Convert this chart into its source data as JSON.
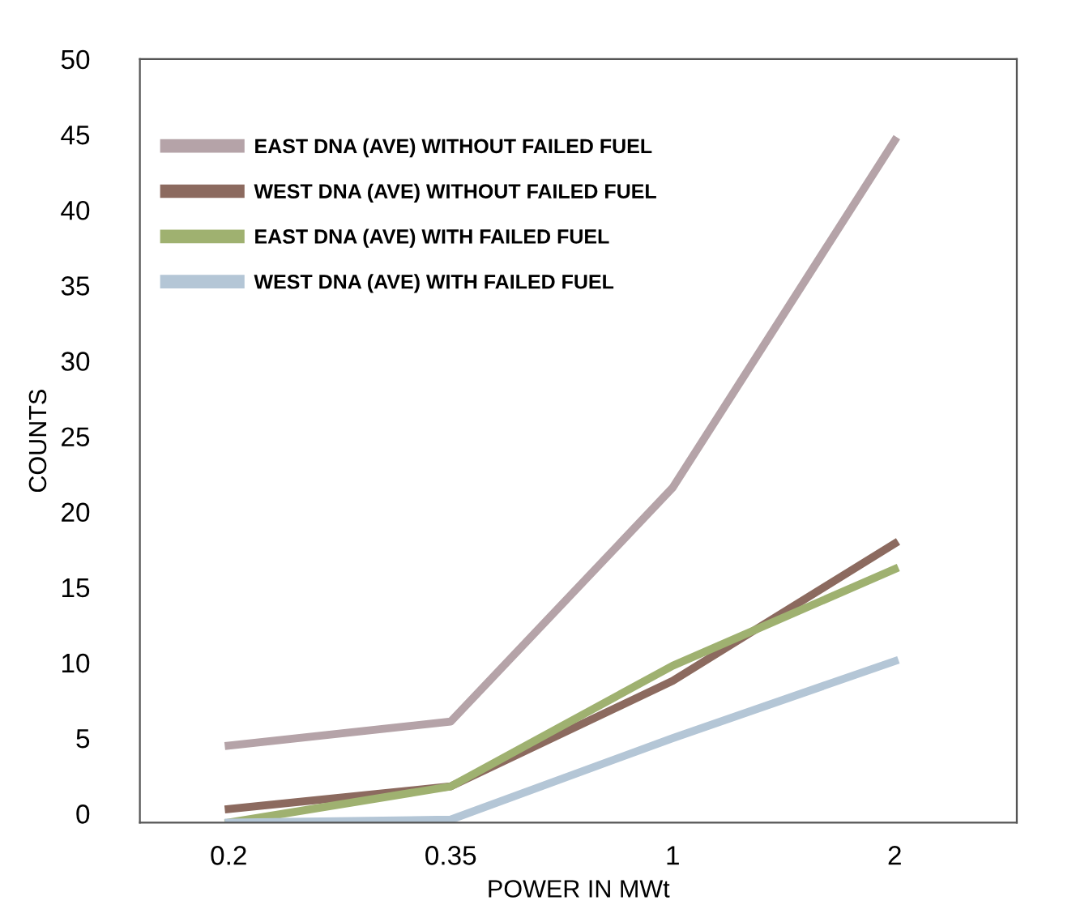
{
  "chart_data": {
    "type": "line",
    "xlabel": "POWER IN MWt",
    "ylabel": "COUNTS",
    "categories": [
      "0.2",
      "0.35",
      "1",
      "2"
    ],
    "series": [
      {
        "name": "EAST DNA (AVE) WITHOUT FAILED FUEL",
        "color": "#b5a3a8",
        "values": [
          4.5,
          6.1,
          21.6,
          44.6
        ]
      },
      {
        "name": "WEST DNA (AVE) WITHOUT FAILED FUEL",
        "color": "#8c6a5f",
        "values": [
          0.3,
          1.8,
          8.8,
          17.9
        ]
      },
      {
        "name": "EAST DNA (AVE) WITH FAILED FUEL",
        "color": "#9fb170",
        "values": [
          -0.6,
          1.8,
          9.8,
          16.2
        ]
      },
      {
        "name": "WEST DNA (AVE) WITH FAILED FUEL",
        "color": "#b4c6d6",
        "values": [
          -0.6,
          -0.4,
          5.0,
          10.1
        ]
      }
    ],
    "ylim": [
      -0.6,
      50
    ],
    "yticks": [
      0,
      5,
      10,
      15,
      20,
      25,
      30,
      35,
      40,
      45,
      50
    ],
    "grid": false,
    "legend": "top left",
    "marker": "none",
    "line_style": "solid"
  }
}
